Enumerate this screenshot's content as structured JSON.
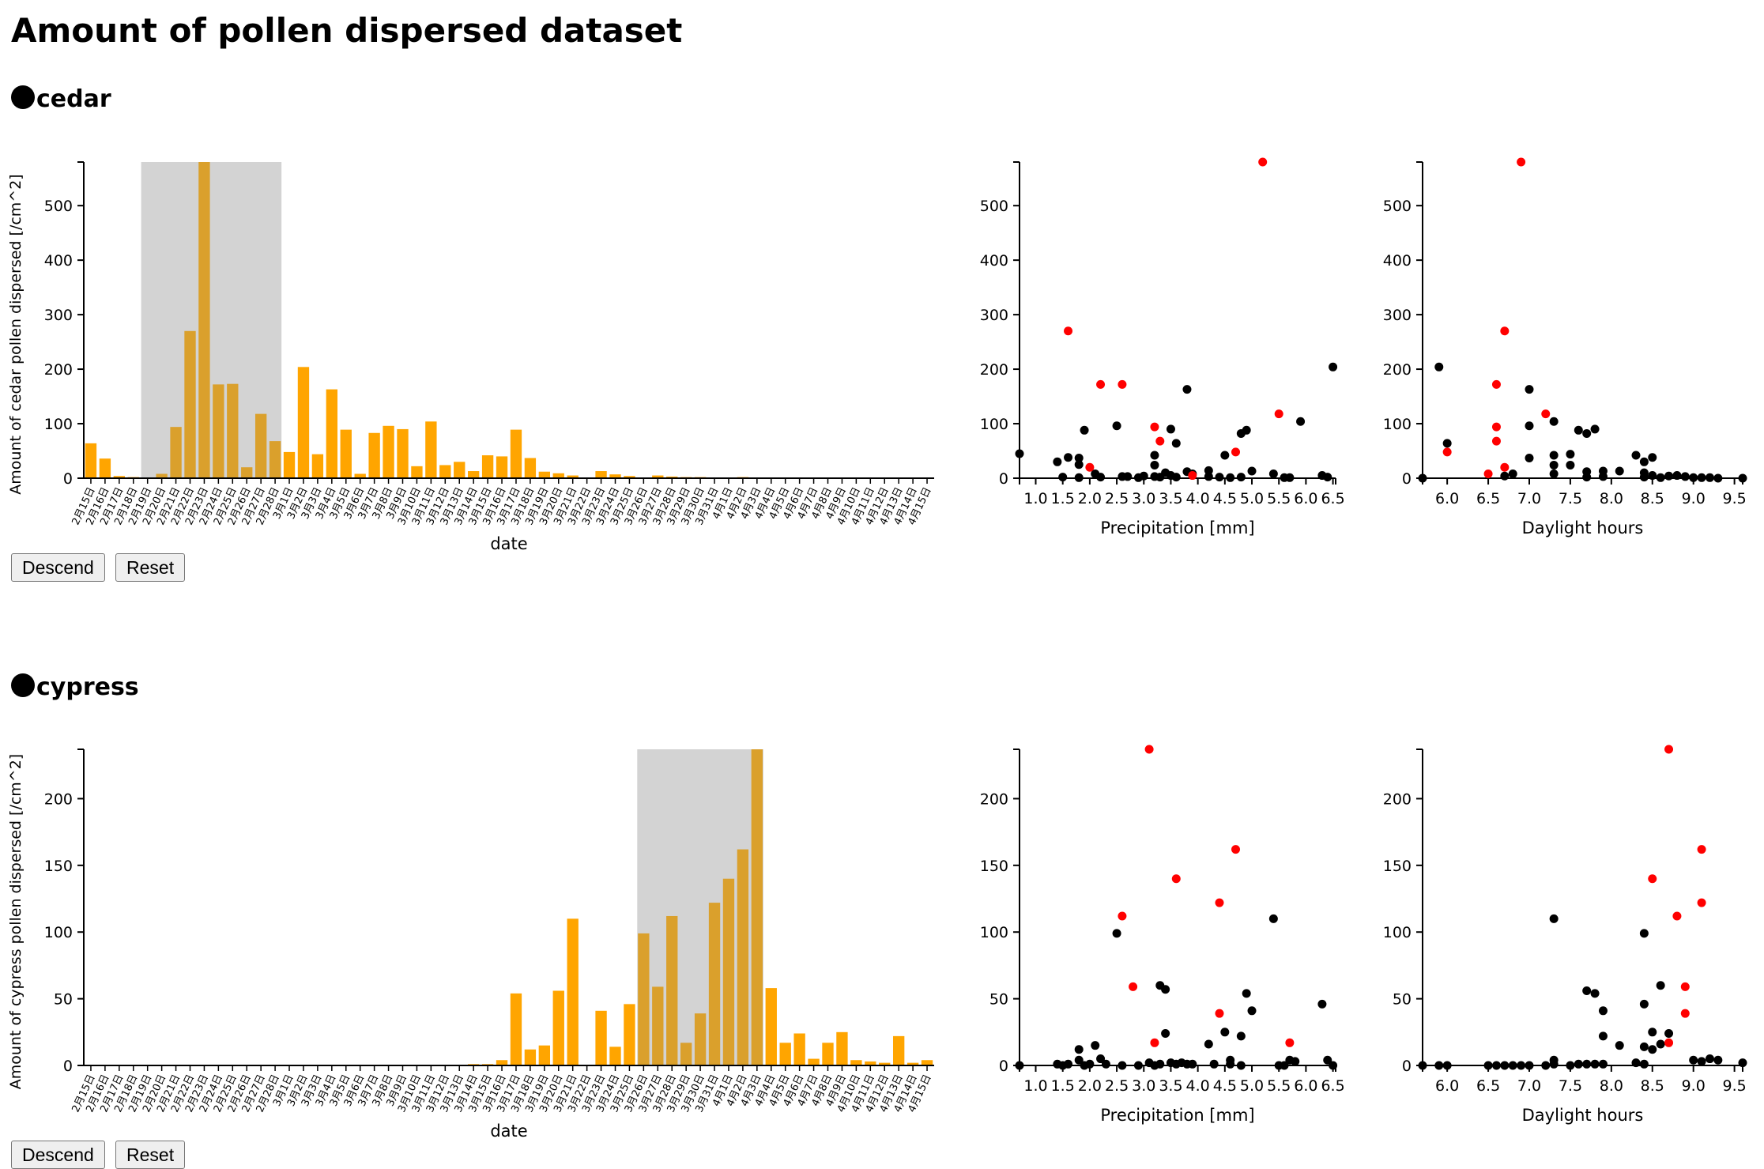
{
  "page": {
    "title": "Amount of pollen dispersed dataset"
  },
  "colors": {
    "bar": "#ffa500",
    "bar_selected": "#daa02c",
    "brush": "#d3d3d3",
    "point": "#000000",
    "point_selected": "#ff0000"
  },
  "buttons": {
    "descend_label": "Descend",
    "reset_label": "Reset"
  },
  "sections": [
    {
      "name": "cedar",
      "bar_ylabel": "Amount of cedar pollen dispersed [/cm^2]",
      "xlabel": "date",
      "scatter1_xlabel": "Precipitation [mm]",
      "scatter2_xlabel": "Daylight hours"
    },
    {
      "name": "cypress",
      "bar_ylabel": "Amount of cypress pollen dispersed [/cm^2]",
      "xlabel": "date",
      "scatter1_xlabel": "Precipitation [mm]",
      "scatter2_xlabel": "Daylight hours"
    }
  ],
  "chart_data": [
    {
      "type": "bar",
      "ylabel": "Amount of cedar pollen dispersed [/cm^2]",
      "xlabel": "date",
      "ylim": [
        0,
        580
      ],
      "yticks": [
        0,
        100,
        200,
        300,
        400,
        500
      ],
      "categories": [
        "2月15日",
        "2月16日",
        "2月17日",
        "2月18日",
        "2月19日",
        "2月20日",
        "2月21日",
        "2月22日",
        "2月23日",
        "2月24日",
        "2月25日",
        "2月26日",
        "2月27日",
        "2月28日",
        "3月1日",
        "3月2日",
        "3月3日",
        "3月4日",
        "3月5日",
        "3月6日",
        "3月7日",
        "3月8日",
        "3月9日",
        "3月10日",
        "3月11日",
        "3月12日",
        "3月13日",
        "3月14日",
        "3月15日",
        "3月16日",
        "3月17日",
        "3月18日",
        "3月19日",
        "3月20日",
        "3月21日",
        "3月22日",
        "3月23日",
        "3月24日",
        "3月25日",
        "3月26日",
        "3月27日",
        "3月28日",
        "3月29日",
        "3月30日",
        "3月31日",
        "4月1日",
        "4月2日",
        "4月3日",
        "4月4日",
        "4月5日",
        "4月6日",
        "4月7日",
        "4月8日",
        "4月9日",
        "4月10日",
        "4月11日",
        "4月12日",
        "4月13日",
        "4月14日",
        "4月15日"
      ],
      "values": [
        64,
        36,
        4,
        2,
        0,
        8,
        94,
        270,
        580,
        172,
        173,
        20,
        118,
        68,
        48,
        204,
        44,
        163,
        89,
        8,
        83,
        96,
        90,
        22,
        104,
        24,
        30,
        13,
        42,
        40,
        89,
        37,
        12,
        9,
        5,
        0,
        13,
        7,
        4,
        1,
        5,
        3,
        2,
        2,
        1,
        1,
        2,
        1,
        1,
        0,
        0,
        0,
        0,
        0,
        0,
        0,
        0,
        0,
        0,
        0
      ],
      "selected_range": [
        "2月19日",
        "2月28日"
      ]
    },
    {
      "type": "scatter",
      "xlabel": "Precipitation [mm]",
      "xlim": [
        0.7,
        6.55
      ],
      "ylim": [
        0,
        580
      ],
      "xticks": [
        1.0,
        1.5,
        2.0,
        2.5,
        3.0,
        3.5,
        4.0,
        4.5,
        5.0,
        5.5,
        6.0,
        6.5
      ],
      "yticks": [
        0,
        100,
        200,
        300,
        400,
        500
      ],
      "points": [
        [
          0.7,
          45
        ],
        [
          1.4,
          30
        ],
        [
          1.5,
          2
        ],
        [
          1.6,
          38
        ],
        [
          1.8,
          37
        ],
        [
          1.8,
          25
        ],
        [
          1.8,
          1
        ],
        [
          1.9,
          88
        ],
        [
          2.1,
          8
        ],
        [
          2.2,
          2
        ],
        [
          2.5,
          96
        ],
        [
          2.6,
          3
        ],
        [
          2.7,
          3
        ],
        [
          2.9,
          1
        ],
        [
          3.0,
          4
        ],
        [
          3.2,
          42
        ],
        [
          3.2,
          24
        ],
        [
          3.2,
          3
        ],
        [
          3.3,
          2
        ],
        [
          3.4,
          10
        ],
        [
          3.5,
          5
        ],
        [
          3.5,
          90
        ],
        [
          3.6,
          2
        ],
        [
          3.6,
          64
        ],
        [
          3.8,
          163
        ],
        [
          3.8,
          12
        ],
        [
          3.9,
          8
        ],
        [
          4.2,
          14
        ],
        [
          4.2,
          3
        ],
        [
          4.4,
          2
        ],
        [
          4.5,
          42
        ],
        [
          4.6,
          1
        ],
        [
          4.8,
          2
        ],
        [
          4.8,
          82
        ],
        [
          4.9,
          88
        ],
        [
          5.0,
          13
        ],
        [
          5.4,
          8
        ],
        [
          5.6,
          1
        ],
        [
          5.7,
          1
        ],
        [
          5.9,
          104
        ],
        [
          6.3,
          5
        ],
        [
          6.4,
          2
        ],
        [
          6.5,
          204
        ]
      ],
      "selected_points": [
        [
          1.6,
          270
        ],
        [
          2.0,
          20
        ],
        [
          2.2,
          172
        ],
        [
          2.6,
          172
        ],
        [
          3.2,
          94
        ],
        [
          3.3,
          68
        ],
        [
          3.9,
          5
        ],
        [
          4.7,
          48
        ],
        [
          5.2,
          580
        ],
        [
          5.5,
          118
        ]
      ]
    },
    {
      "type": "scatter",
      "xlabel": "Daylight hours",
      "xlim": [
        5.7,
        9.6
      ],
      "ylim": [
        0,
        580
      ],
      "xticks": [
        6.0,
        6.5,
        7.0,
        7.5,
        8.0,
        8.5,
        9.0,
        9.5
      ],
      "yticks": [
        0,
        100,
        200,
        300,
        400,
        500
      ],
      "points": [
        [
          5.7,
          0
        ],
        [
          5.9,
          204
        ],
        [
          6.0,
          64
        ],
        [
          6.7,
          4
        ],
        [
          6.8,
          8
        ],
        [
          7.0,
          163
        ],
        [
          7.0,
          96
        ],
        [
          7.0,
          37
        ],
        [
          7.3,
          104
        ],
        [
          7.3,
          42
        ],
        [
          7.3,
          24
        ],
        [
          7.3,
          8
        ],
        [
          7.5,
          44
        ],
        [
          7.5,
          24
        ],
        [
          7.6,
          88
        ],
        [
          7.7,
          82
        ],
        [
          7.7,
          12
        ],
        [
          7.7,
          2
        ],
        [
          7.8,
          90
        ],
        [
          7.9,
          13
        ],
        [
          7.9,
          3
        ],
        [
          8.1,
          13
        ],
        [
          8.3,
          42
        ],
        [
          8.4,
          30
        ],
        [
          8.4,
          10
        ],
        [
          8.4,
          2
        ],
        [
          8.5,
          38
        ],
        [
          8.5,
          5
        ],
        [
          8.6,
          1
        ],
        [
          8.7,
          4
        ],
        [
          8.8,
          5
        ],
        [
          8.9,
          3
        ],
        [
          9.0,
          1
        ],
        [
          9.1,
          1
        ],
        [
          9.2,
          1
        ],
        [
          9.3,
          0
        ],
        [
          9.6,
          0
        ]
      ],
      "selected_points": [
        [
          6.0,
          48
        ],
        [
          6.5,
          8
        ],
        [
          6.6,
          94
        ],
        [
          6.6,
          68
        ],
        [
          6.6,
          172
        ],
        [
          6.7,
          270
        ],
        [
          6.7,
          20
        ],
        [
          6.9,
          580
        ],
        [
          7.2,
          118
        ]
      ]
    },
    {
      "type": "bar",
      "ylabel": "Amount of cypress pollen dispersed [/cm^2]",
      "xlabel": "date",
      "ylim": [
        0,
        237
      ],
      "yticks": [
        0,
        50,
        100,
        150,
        200
      ],
      "categories": [
        "2月15日",
        "2月16日",
        "2月17日",
        "2月18日",
        "2月19日",
        "2月20日",
        "2月21日",
        "2月22日",
        "2月23日",
        "2月24日",
        "2月25日",
        "2月26日",
        "2月27日",
        "2月28日",
        "3月1日",
        "3月2日",
        "3月3日",
        "3月4日",
        "3月5日",
        "3月6日",
        "3月7日",
        "3月8日",
        "3月9日",
        "3月10日",
        "3月11日",
        "3月12日",
        "3月13日",
        "3月14日",
        "3月15日",
        "3月16日",
        "3月17日",
        "3月18日",
        "3月19日",
        "3月20日",
        "3月21日",
        "3月22日",
        "3月23日",
        "3月24日",
        "3月25日",
        "3月26日",
        "3月27日",
        "3月28日",
        "3月29日",
        "3月30日",
        "3月31日",
        "4月1日",
        "4月2日",
        "4月3日",
        "4月4日",
        "4月5日",
        "4月6日",
        "4月7日",
        "4月8日",
        "4月9日",
        "4月10日",
        "4月11日",
        "4月12日",
        "4月13日",
        "4月14日",
        "4月15日"
      ],
      "values": [
        0,
        0,
        0,
        0,
        0,
        0,
        0,
        0,
        0,
        0,
        0,
        0,
        0,
        0,
        0,
        0,
        0,
        0,
        0,
        0,
        0,
        0,
        0,
        0,
        0,
        0,
        0,
        1,
        1,
        4,
        54,
        12,
        15,
        56,
        110,
        0,
        41,
        14,
        46,
        99,
        59,
        112,
        17,
        39,
        122,
        140,
        162,
        237,
        58,
        17,
        24,
        5,
        17,
        25,
        4,
        3,
        2,
        22,
        2,
        4
      ],
      "selected_range": [
        "3月26日",
        "4月3日"
      ]
    },
    {
      "type": "scatter",
      "xlabel": "Precipitation [mm]",
      "xlim": [
        0.7,
        6.55
      ],
      "ylim": [
        0,
        237
      ],
      "xticks": [
        1.0,
        1.5,
        2.0,
        2.5,
        3.0,
        3.5,
        4.0,
        4.5,
        5.0,
        5.5,
        6.0,
        6.5
      ],
      "yticks": [
        0,
        50,
        100,
        150,
        200
      ],
      "points": [
        [
          0.7,
          0
        ],
        [
          1.4,
          1
        ],
        [
          1.5,
          0
        ],
        [
          1.6,
          1
        ],
        [
          1.8,
          12
        ],
        [
          1.8,
          4
        ],
        [
          1.9,
          0
        ],
        [
          2.0,
          1
        ],
        [
          2.1,
          15
        ],
        [
          2.2,
          5
        ],
        [
          2.3,
          1
        ],
        [
          2.5,
          99
        ],
        [
          2.6,
          0
        ],
        [
          2.9,
          0
        ],
        [
          3.1,
          2
        ],
        [
          3.2,
          0
        ],
        [
          3.3,
          60
        ],
        [
          3.3,
          1
        ],
        [
          3.4,
          24
        ],
        [
          3.4,
          57
        ],
        [
          3.5,
          2
        ],
        [
          3.6,
          1
        ],
        [
          3.7,
          2
        ],
        [
          3.8,
          1
        ],
        [
          3.9,
          1
        ],
        [
          4.2,
          16
        ],
        [
          4.3,
          1
        ],
        [
          4.5,
          25
        ],
        [
          4.6,
          1
        ],
        [
          4.6,
          4
        ],
        [
          4.8,
          0
        ],
        [
          4.8,
          22
        ],
        [
          4.9,
          54
        ],
        [
          5.0,
          41
        ],
        [
          5.4,
          110
        ],
        [
          5.5,
          0
        ],
        [
          5.6,
          0
        ],
        [
          5.7,
          4
        ],
        [
          5.8,
          3
        ],
        [
          6.3,
          46
        ],
        [
          6.4,
          4
        ],
        [
          6.5,
          0
        ]
      ],
      "selected_points": [
        [
          2.6,
          112
        ],
        [
          2.8,
          59
        ],
        [
          3.1,
          237
        ],
        [
          3.2,
          17
        ],
        [
          3.6,
          140
        ],
        [
          4.4,
          39
        ],
        [
          4.4,
          122
        ],
        [
          4.7,
          162
        ],
        [
          5.7,
          17
        ]
      ]
    },
    {
      "type": "scatter",
      "xlabel": "Daylight hours",
      "xlim": [
        5.7,
        9.6
      ],
      "ylim": [
        0,
        237
      ],
      "xticks": [
        6.0,
        6.5,
        7.0,
        7.5,
        8.0,
        8.5,
        9.0,
        9.5
      ],
      "yticks": [
        0,
        50,
        100,
        150,
        200
      ],
      "points": [
        [
          5.7,
          0
        ],
        [
          5.9,
          0
        ],
        [
          6.0,
          0
        ],
        [
          6.5,
          0
        ],
        [
          6.6,
          0
        ],
        [
          6.7,
          0
        ],
        [
          6.8,
          0
        ],
        [
          6.9,
          0
        ],
        [
          7.0,
          0
        ],
        [
          7.2,
          0
        ],
        [
          7.3,
          110
        ],
        [
          7.3,
          4
        ],
        [
          7.3,
          1
        ],
        [
          7.5,
          0
        ],
        [
          7.6,
          1
        ],
        [
          7.7,
          56
        ],
        [
          7.7,
          1
        ],
        [
          7.8,
          54
        ],
        [
          7.8,
          1
        ],
        [
          7.9,
          41
        ],
        [
          7.9,
          22
        ],
        [
          7.9,
          1
        ],
        [
          8.1,
          15
        ],
        [
          8.3,
          2
        ],
        [
          8.4,
          1
        ],
        [
          8.4,
          99
        ],
        [
          8.4,
          46
        ],
        [
          8.4,
          14
        ],
        [
          8.5,
          25
        ],
        [
          8.5,
          12
        ],
        [
          8.6,
          16
        ],
        [
          8.7,
          24
        ],
        [
          8.6,
          60
        ],
        [
          9.0,
          4
        ],
        [
          9.1,
          3
        ],
        [
          9.2,
          5
        ],
        [
          9.3,
          4
        ],
        [
          9.6,
          2
        ]
      ],
      "selected_points": [
        [
          8.5,
          140
        ],
        [
          8.7,
          237
        ],
        [
          8.8,
          112
        ],
        [
          8.7,
          17
        ],
        [
          8.9,
          59
        ],
        [
          8.9,
          39
        ],
        [
          9.1,
          162
        ],
        [
          9.1,
          122
        ]
      ]
    }
  ]
}
